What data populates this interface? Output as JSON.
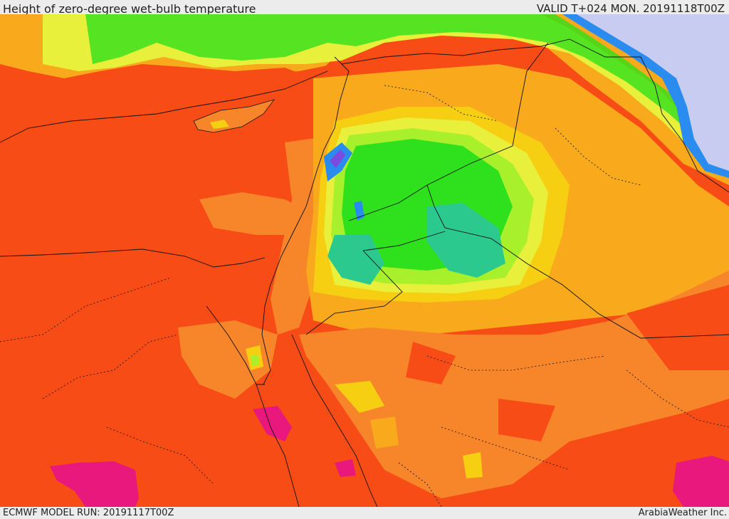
{
  "header": {
    "title": "Height of zero-degree wet-bulb temperature",
    "valid": "VALID T+024 MON. 20191118T00Z"
  },
  "footer": {
    "model_run": "ECMWF MODEL RUN: 20191117T00Z",
    "credit": "ArabiaWeather Inc."
  },
  "palette": {
    "dark_orange": "#f84c16",
    "orange": "#f7852a",
    "light_orange": "#f8a91c",
    "yellow": "#f6ce12",
    "light_yellow": "#e8f03c",
    "yellow_green": "#a8f02c",
    "green": "#2fe01c",
    "teal": "#2cc98f",
    "blue": "#2b8cf0",
    "violet": "#7a4bdc",
    "lavender": "#c8ccf0",
    "magenta": "#e8187c"
  }
}
